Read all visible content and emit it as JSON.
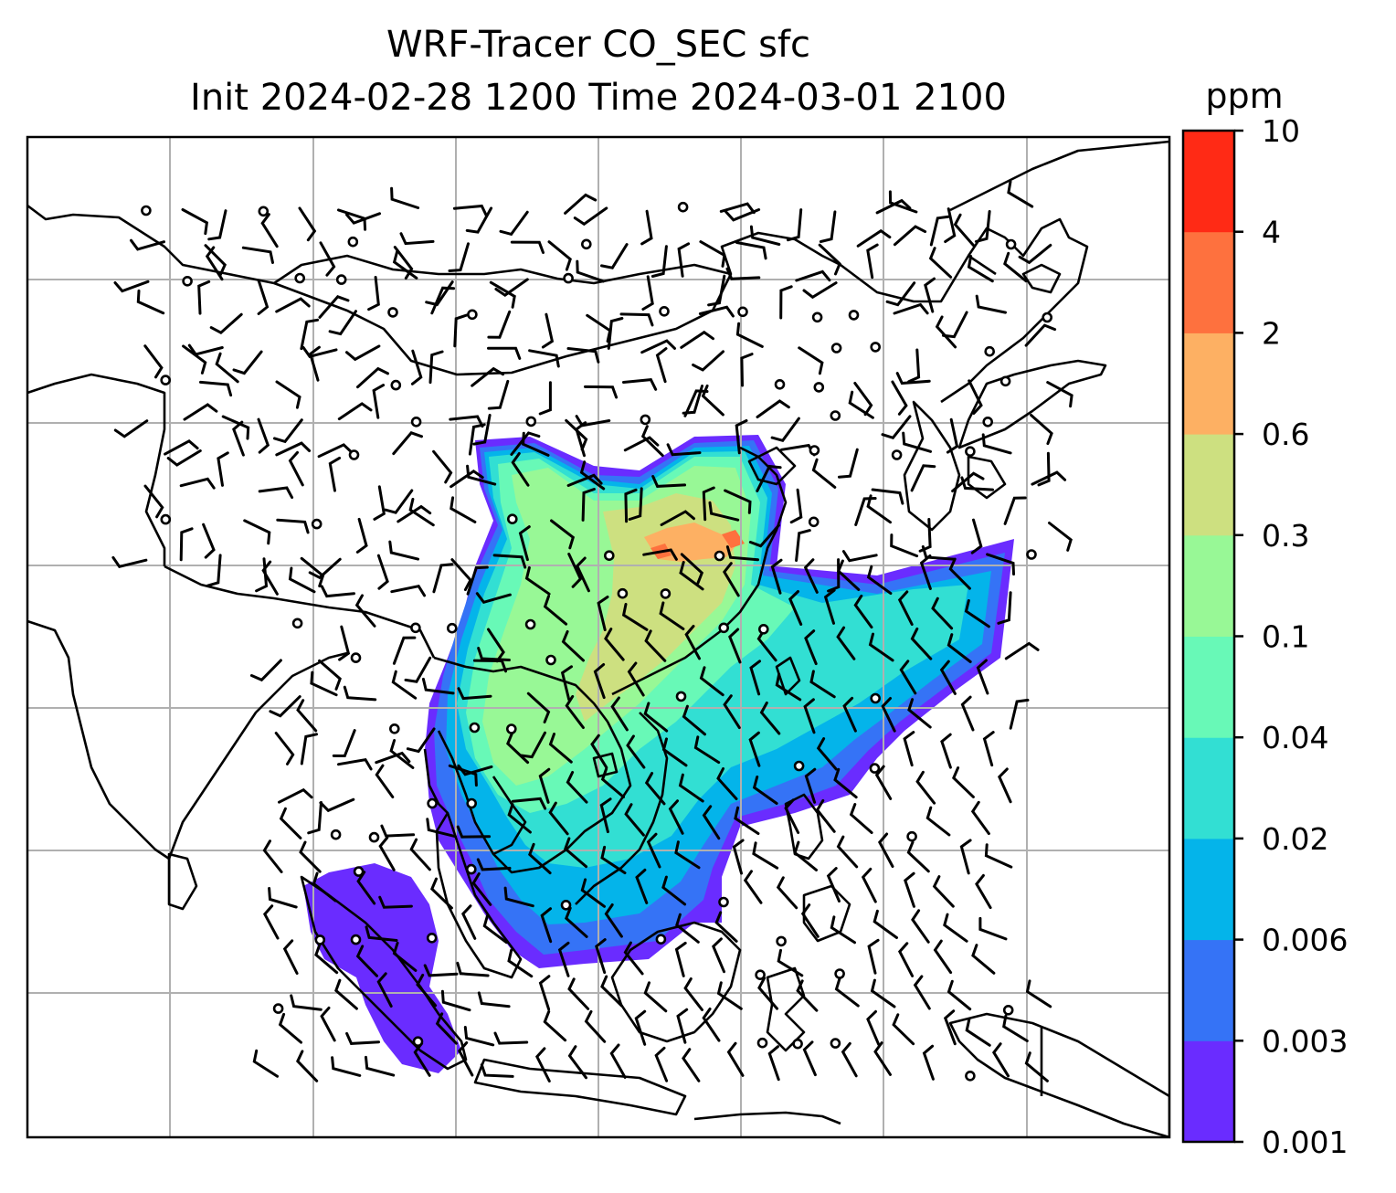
{
  "title": {
    "line1": "WRF-Tracer CO_SEC sfc",
    "line2": "Init 2024-02-28 1200 Time 2024-03-01 2100"
  },
  "colorbar": {
    "unit": "ppm",
    "levels": [
      "0.001",
      "0.003",
      "0.006",
      "0.02",
      "0.04",
      "0.1",
      "0.3",
      "0.6",
      "2",
      "4",
      "10"
    ],
    "colors": [
      "#6a2cff",
      "#3573f6",
      "#04b4ea",
      "#32dfd3",
      "#68f9b7",
      "#98f896",
      "#cde080",
      "#fdb063",
      "#fe713e",
      "#ff2a15"
    ]
  },
  "map": {
    "grid_color": "#b0b0b0",
    "coastline_color": "#000000",
    "wind_barb_color": "#000000",
    "calm_marker": "circle"
  }
}
